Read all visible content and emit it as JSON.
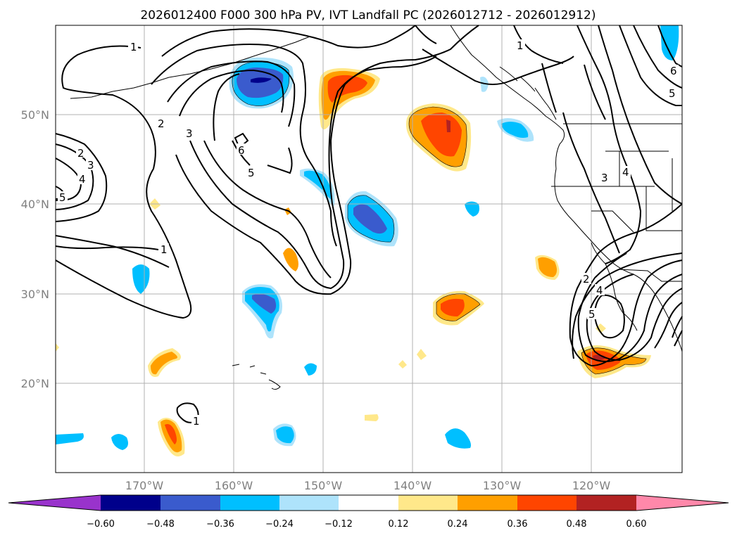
{
  "title": "2026012400 F000 300 hPa PV, IVT Landfall PC (2026012712 - 2026012912)",
  "map": {
    "lat_labels": [
      "50°N",
      "40°N",
      "30°N",
      "20°N"
    ],
    "lon_labels": [
      "170°W",
      "160°W",
      "150°W",
      "140°W",
      "130°W",
      "120°W"
    ],
    "contour_labels": [
      {
        "text": "1",
        "id": "nw"
      },
      {
        "text": "2",
        "id": "a"
      },
      {
        "text": "3",
        "id": "a"
      },
      {
        "text": "6",
        "id": "a"
      },
      {
        "text": "5",
        "id": "a"
      },
      {
        "text": "2",
        "id": "w"
      },
      {
        "text": "3",
        "id": "w"
      },
      {
        "text": "4",
        "id": "w"
      },
      {
        "text": "5",
        "id": "w"
      },
      {
        "text": "1",
        "id": "w"
      },
      {
        "text": "1",
        "id": "ne"
      },
      {
        "text": "6",
        "id": "ne"
      },
      {
        "text": "5",
        "id": "ne"
      },
      {
        "text": "4",
        "id": "e"
      },
      {
        "text": "3",
        "id": "e"
      },
      {
        "text": "2",
        "id": "s"
      },
      {
        "text": "4",
        "id": "s"
      },
      {
        "text": "5",
        "id": "s"
      },
      {
        "text": "1",
        "id": "hi"
      }
    ]
  },
  "colorbar": {
    "ticks": [
      "−0.60",
      "−0.48",
      "−0.36",
      "−0.24",
      "−0.12",
      "0.12",
      "0.24",
      "0.36",
      "0.48",
      "0.60"
    ],
    "colors": [
      "#9933cc",
      "#00008b",
      "#3a5bcd",
      "#00bfff",
      "#aee3fb",
      "#ffffff",
      "#ffe88a",
      "#ff9f00",
      "#ff4500",
      "#b22222",
      "#ff88aa"
    ]
  }
}
